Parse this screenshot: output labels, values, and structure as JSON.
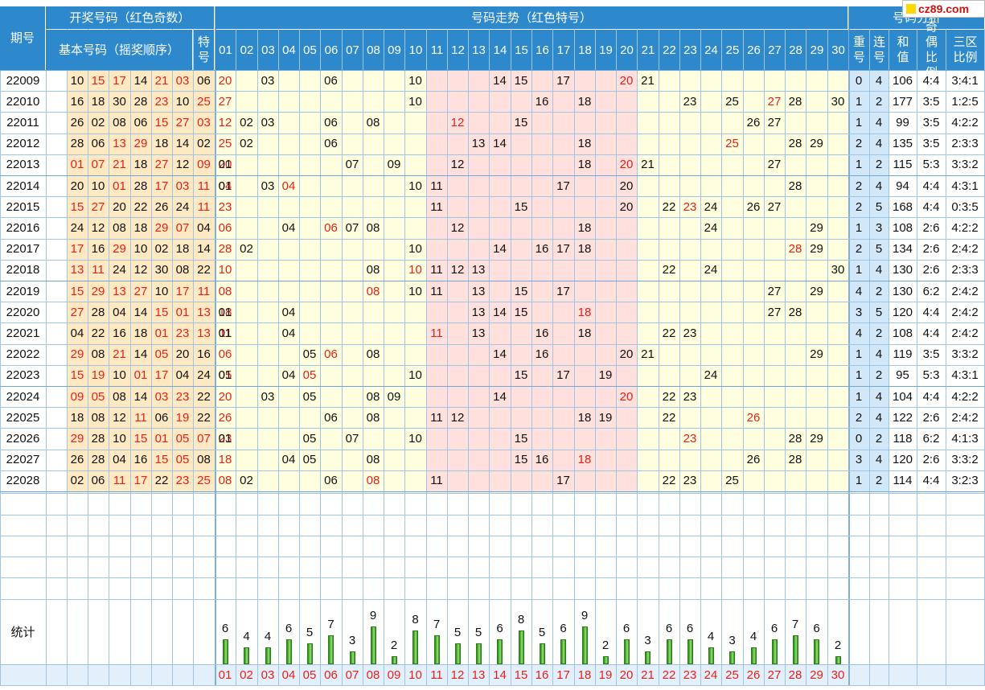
{
  "header": {
    "period": "期号",
    "draw_group": "开奖号码（红色奇数）",
    "basic_numbers": "基本号码（摇奖顺序）",
    "special": "特号",
    "trend_group": "号码走势（红色特号）",
    "analysis_group": "号码分析",
    "repeat": "重号",
    "consecutive": "连号",
    "sum": "和值",
    "odd_even": "奇偶比例",
    "zone": "三区比例"
  },
  "numbers": [
    "01",
    "02",
    "03",
    "04",
    "05",
    "06",
    "07",
    "08",
    "09",
    "10",
    "11",
    "12",
    "13",
    "14",
    "15",
    "16",
    "17",
    "18",
    "19",
    "20",
    "21",
    "22",
    "23",
    "24",
    "25",
    "26",
    "27",
    "28",
    "29",
    "30"
  ],
  "rows": [
    {
      "issue": "22009",
      "basic": [
        "10",
        "15",
        "17",
        "14",
        "21",
        "03",
        "06"
      ],
      "special": "20",
      "repeat": "0",
      "consecutive": "4",
      "sum": "106",
      "odd_even": "4:4",
      "zone": "3:4:1"
    },
    {
      "issue": "22010",
      "basic": [
        "16",
        "18",
        "30",
        "28",
        "23",
        "10",
        "25"
      ],
      "special": "27",
      "repeat": "1",
      "consecutive": "2",
      "sum": "177",
      "odd_even": "3:5",
      "zone": "1:2:5"
    },
    {
      "issue": "22011",
      "basic": [
        "26",
        "02",
        "08",
        "06",
        "15",
        "27",
        "03"
      ],
      "special": "12",
      "repeat": "1",
      "consecutive": "4",
      "sum": "99",
      "odd_even": "3:5",
      "zone": "4:2:2"
    },
    {
      "issue": "22012",
      "basic": [
        "28",
        "06",
        "13",
        "29",
        "18",
        "14",
        "02"
      ],
      "special": "25",
      "repeat": "2",
      "consecutive": "4",
      "sum": "135",
      "odd_even": "3:5",
      "zone": "2:3:3"
    },
    {
      "issue": "22013",
      "basic": [
        "01",
        "07",
        "21",
        "18",
        "27",
        "12",
        "09"
      ],
      "special": "20",
      "repeat": "1",
      "consecutive": "2",
      "sum": "115",
      "odd_even": "5:3",
      "zone": "3:3:2"
    },
    {
      "issue": "22014",
      "basic": [
        "20",
        "10",
        "01",
        "28",
        "17",
        "03",
        "11"
      ],
      "special": "04",
      "repeat": "2",
      "consecutive": "4",
      "sum": "94",
      "odd_even": "4:4",
      "zone": "4:3:1"
    },
    {
      "issue": "22015",
      "basic": [
        "15",
        "27",
        "20",
        "22",
        "26",
        "24",
        "11"
      ],
      "special": "23",
      "repeat": "2",
      "consecutive": "5",
      "sum": "168",
      "odd_even": "4:4",
      "zone": "0:3:5"
    },
    {
      "issue": "22016",
      "basic": [
        "24",
        "12",
        "08",
        "18",
        "29",
        "07",
        "04"
      ],
      "special": "06",
      "repeat": "1",
      "consecutive": "3",
      "sum": "108",
      "odd_even": "2:6",
      "zone": "4:2:2"
    },
    {
      "issue": "22017",
      "basic": [
        "17",
        "16",
        "29",
        "10",
        "02",
        "18",
        "14"
      ],
      "special": "28",
      "repeat": "2",
      "consecutive": "5",
      "sum": "134",
      "odd_even": "2:6",
      "zone": "2:4:2"
    },
    {
      "issue": "22018",
      "basic": [
        "13",
        "11",
        "24",
        "12",
        "30",
        "08",
        "22"
      ],
      "special": "10",
      "repeat": "1",
      "consecutive": "4",
      "sum": "130",
      "odd_even": "2:6",
      "zone": "2:3:3"
    },
    {
      "issue": "22019",
      "basic": [
        "15",
        "29",
        "13",
        "27",
        "10",
        "17",
        "11"
      ],
      "special": "08",
      "repeat": "4",
      "consecutive": "2",
      "sum": "130",
      "odd_even": "6:2",
      "zone": "2:4:2"
    },
    {
      "issue": "22020",
      "basic": [
        "27",
        "28",
        "04",
        "14",
        "15",
        "01",
        "13"
      ],
      "special": "18",
      "repeat": "3",
      "consecutive": "5",
      "sum": "120",
      "odd_even": "4:4",
      "zone": "2:4:2"
    },
    {
      "issue": "22021",
      "basic": [
        "04",
        "22",
        "16",
        "18",
        "01",
        "23",
        "13"
      ],
      "special": "11",
      "repeat": "4",
      "consecutive": "2",
      "sum": "108",
      "odd_even": "4:4",
      "zone": "2:4:2"
    },
    {
      "issue": "22022",
      "basic": [
        "29",
        "08",
        "21",
        "14",
        "05",
        "20",
        "16"
      ],
      "special": "06",
      "repeat": "1",
      "consecutive": "4",
      "sum": "119",
      "odd_even": "3:5",
      "zone": "3:3:2"
    },
    {
      "issue": "22023",
      "basic": [
        "15",
        "19",
        "10",
        "01",
        "17",
        "04",
        "24"
      ],
      "special": "05",
      "repeat": "1",
      "consecutive": "2",
      "sum": "95",
      "odd_even": "5:3",
      "zone": "4:3:1"
    },
    {
      "issue": "22024",
      "basic": [
        "09",
        "05",
        "08",
        "14",
        "03",
        "23",
        "22"
      ],
      "special": "20",
      "repeat": "1",
      "consecutive": "4",
      "sum": "104",
      "odd_even": "4:4",
      "zone": "4:2:2"
    },
    {
      "issue": "22025",
      "basic": [
        "18",
        "08",
        "12",
        "11",
        "06",
        "19",
        "22"
      ],
      "special": "26",
      "repeat": "2",
      "consecutive": "4",
      "sum": "122",
      "odd_even": "2:6",
      "zone": "2:4:2"
    },
    {
      "issue": "22026",
      "basic": [
        "29",
        "28",
        "10",
        "15",
        "01",
        "05",
        "07"
      ],
      "special": "23",
      "repeat": "0",
      "consecutive": "2",
      "sum": "118",
      "odd_even": "6:2",
      "zone": "4:1:3"
    },
    {
      "issue": "22027",
      "basic": [
        "26",
        "28",
        "04",
        "16",
        "15",
        "05",
        "08"
      ],
      "special": "18",
      "repeat": "3",
      "consecutive": "4",
      "sum": "120",
      "odd_even": "2:6",
      "zone": "3:3:2"
    },
    {
      "issue": "22028",
      "basic": [
        "02",
        "06",
        "11",
        "17",
        "22",
        "23",
        "25"
      ],
      "special": "08",
      "repeat": "1",
      "consecutive": "2",
      "sum": "114",
      "odd_even": "4:4",
      "zone": "3:2:3"
    }
  ],
  "stats": {
    "label": "统计",
    "counts": [
      6,
      4,
      4,
      6,
      5,
      7,
      3,
      9,
      2,
      8,
      7,
      5,
      5,
      6,
      8,
      5,
      6,
      9,
      2,
      6,
      3,
      6,
      6,
      4,
      3,
      4,
      6,
      7,
      6,
      2
    ]
  },
  "logo": {
    "text": "cz89.com"
  },
  "colors": {
    "header": "#2d89cc",
    "grid": "#9ec5e6",
    "red": "#e8201a",
    "basic_bg": "#ffe9c2",
    "zone_yellow": "#ffffe0",
    "zone_pink": "#ffe0dc",
    "analysis_bg": "#d2e7f7"
  }
}
